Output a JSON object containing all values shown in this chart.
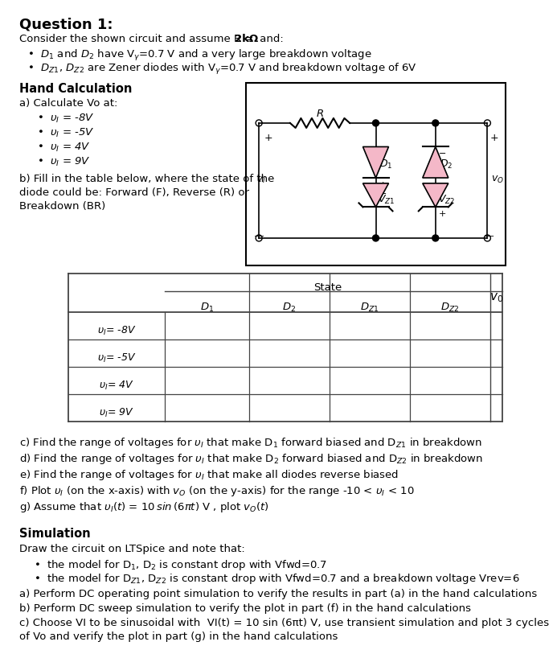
{
  "bg_color": "#ffffff",
  "fig_width": 6.33,
  "fig_height": 7.72,
  "text_color": "#000000",
  "diode_color": "#f4b8c8",
  "title": "Question 1:",
  "intro_line": "Consider the shown circuit and assume R = ",
  "R_bold": "2kΩ",
  "intro_end": " and:",
  "bullet1": "$D_1$ and $D_2$ have V$_\\gamma$=0.7 V and a very large breakdown voltage",
  "bullet2": "$D_{Z1}$, $D_{Z2}$ are Zener diodes with V$_\\gamma$=0.7 V and breakdown voltage of 6V",
  "hand_calc_title": "Hand Calculation",
  "part_a": "a) Calculate Vo at:",
  "vi_values": [
    "$\\upsilon_I$ = -8V",
    "$\\upsilon_I$ = -5V",
    "$\\upsilon_I$ = 4V",
    "$\\upsilon_I$ = 9V"
  ],
  "part_b": "b) Fill in the table below, where the state of the\ndiode could be: Forward (F), Reverse (R) or\nBreakdown (BR)",
  "table_row_labels": [
    "$\\upsilon_I$= -8V",
    "$\\upsilon_I$= -5V",
    "$\\upsilon_I$= 4V",
    "$\\upsilon_I$= 9V"
  ],
  "table_col_labels": [
    "$D_1$",
    "$D_2$",
    "$D_{Z1}$",
    "$D_{Z2}$"
  ],
  "table_state_header": "State",
  "table_vo_header": "$v_O$",
  "part_c": "c) Find the range of voltages for $\\upsilon_I$ that make D$_1$ forward biased and D$_{Z1}$ in breakdown",
  "part_d": "d) Find the range of voltages for $\\upsilon_I$ that make D$_2$ forward biased and D$_{Z2}$ in breakdown",
  "part_e": "e) Find the range of voltages for $\\upsilon_I$ that make all diodes reverse biased",
  "part_f": "f) Plot $\\upsilon_I$ (on the x-axis) with $v_O$ (on the y-axis) for the range -10 < $\\upsilon_I$ < 10",
  "part_g": "g) Assume that $\\upsilon_I(t)$ = $\\mathit{10\\,sin\\,(6\\pi t)}$ V , plot $v_O(t)$",
  "sim_title": "Simulation",
  "sim_intro": "Draw the circuit on LTSpice and note that:",
  "sim_b1": "the model for D$_1$, D$_2$ is constant drop with Vfwd=0.7",
  "sim_b2": "the model for D$_{Z1}$, D$_{Z2}$ is constant drop with Vfwd=0.7 and a breakdown voltage Vrev=6",
  "sim_a": "a) Perform DC operating point simulation to verify the results in part (a) in the hand calculations",
  "sim_b": "b) Perform DC sweep simulation to verify the plot in part (f) in the hand calculations",
  "sim_c": "c) Choose VI to be sinusoidal with  VI(t) = 10 sin (6πt) V, use transient simulation and plot 3 cycles\nof Vo and verify the plot in part (g) in the hand calculations"
}
